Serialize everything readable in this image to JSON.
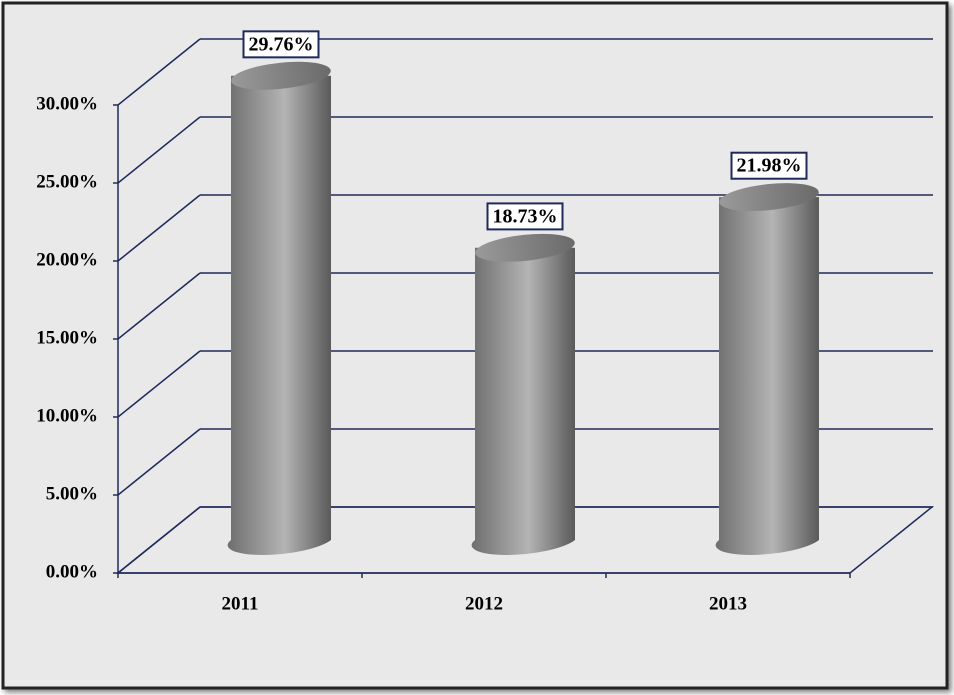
{
  "chart_data": {
    "type": "bar3d",
    "categories": [
      "2011",
      "2012",
      "2013"
    ],
    "values": [
      29.76,
      18.73,
      21.98
    ],
    "value_labels": [
      "29.76%",
      "18.73%",
      "21.98%"
    ],
    "ylim": [
      0,
      30
    ],
    "yticks": [
      {
        "value": 0,
        "label": "0.00%"
      },
      {
        "value": 5,
        "label": "5.00%"
      },
      {
        "value": 10,
        "label": "10.00%"
      },
      {
        "value": 15,
        "label": "15.00%"
      },
      {
        "value": 20,
        "label": "20.00%"
      },
      {
        "value": 25,
        "label": "25.00%"
      },
      {
        "value": 30,
        "label": "30.00%"
      }
    ],
    "grid": true,
    "color": "#a6a6a6"
  }
}
